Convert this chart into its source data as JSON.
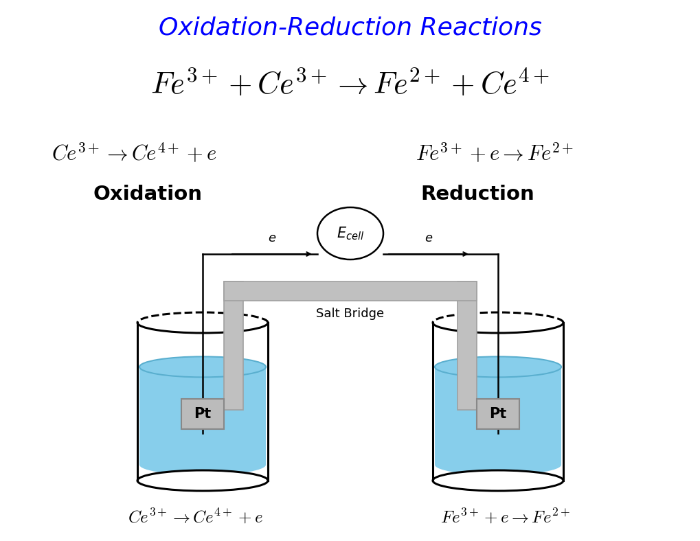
{
  "title": "Oxidation-Reduction Reactions",
  "title_color": "#0000FF",
  "title_fontsize": 26,
  "bg_color": "#FFFFFF",
  "main_eq": "$Fe^{3+} + Ce^{3+} \\rightarrow Fe^{2+} + Ce^{4+}$",
  "left_half_eq": "$Ce^{3+} \\rightarrow Ce^{4+} + e$",
  "right_half_eq": "$Fe^{3+} + e \\rightarrow Fe^{2+}$",
  "oxidation_label": "Oxidation",
  "reduction_label": "Reduction",
  "left_bottom_eq": "$Ce^{3+} \\rightarrow Ce^{4+} + e$",
  "right_bottom_eq": "$Fe^{3+} + e \\rightarrow Fe^{2+}$",
  "salt_bridge_label": "Salt Bridge",
  "ecell_label": "$E_{cell}$",
  "pt_label": "Pt",
  "water_color": "#87CEEB",
  "water_edge_color": "#5AAFCF",
  "beaker_color": "#000000",
  "salt_bridge_color": "#C0C0C0",
  "salt_bridge_edge": "#A0A0A0",
  "wire_color": "#000000",
  "pt_box_color": "#BBBBBB",
  "pt_box_edge": "#888888"
}
